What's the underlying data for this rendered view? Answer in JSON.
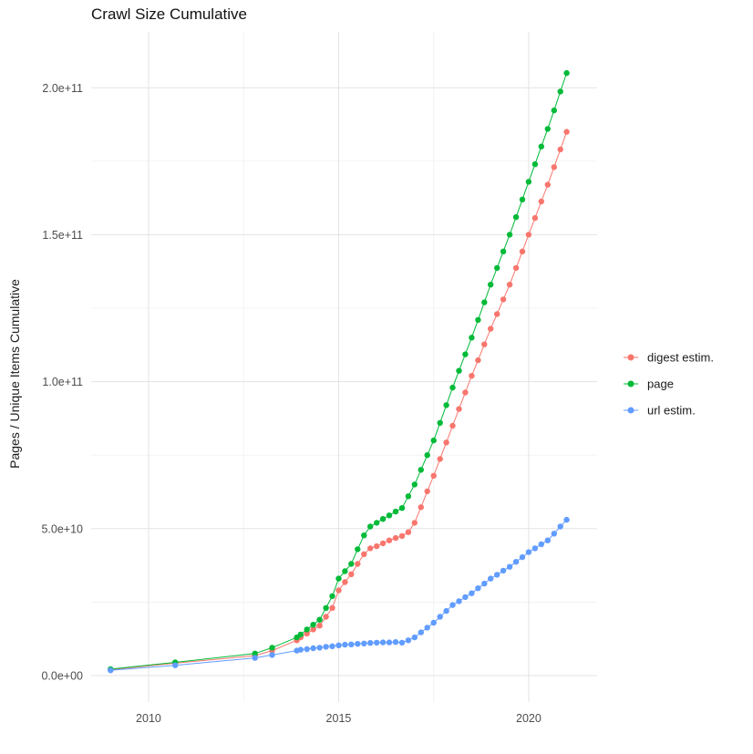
{
  "chart_data": {
    "type": "line",
    "title": "Crawl Size Cumulative",
    "xlabel": "",
    "ylabel": "Pages / Unique Items Cumulative",
    "legend_position": "right",
    "grid": true,
    "xlim": [
      2008.49,
      2021.8
    ],
    "ylim": [
      -9000000000,
      219000000000
    ],
    "x_ticks": [
      2010,
      2015,
      2020
    ],
    "x_tick_labels": [
      "2010",
      "2015",
      "2020"
    ],
    "x_minor_ticks": [
      2012.5,
      2017.5
    ],
    "y_ticks": [
      0,
      50000000000,
      100000000000,
      150000000000,
      200000000000
    ],
    "y_tick_labels": [
      "0.0e+00",
      "5.0e+10",
      "1.0e+11",
      "1.5e+11",
      "2.0e+11"
    ],
    "y_minor_ticks": [
      25000000000,
      75000000000,
      125000000000,
      175000000000
    ],
    "y_value_scale": 1000000000,
    "colors": {
      "grid_major": "#e3e3e3",
      "grid_minor": "#f1f1f1",
      "axis_text": "#4d4d4d",
      "background": "#ffffff"
    },
    "x": [
      2009,
      2010.7,
      2012.8,
      2013.25,
      2013.9,
      2014,
      2014.167,
      2014.333,
      2014.5,
      2014.667,
      2014.833,
      2015,
      2015.167,
      2015.333,
      2015.5,
      2015.667,
      2015.833,
      2016,
      2016.167,
      2016.333,
      2016.5,
      2016.667,
      2016.833,
      2017,
      2017.167,
      2017.333,
      2017.5,
      2017.667,
      2017.833,
      2018,
      2018.167,
      2018.333,
      2018.5,
      2018.667,
      2018.833,
      2019,
      2019.167,
      2019.333,
      2019.5,
      2019.667,
      2019.833,
      2020,
      2020.167,
      2020.333,
      2020.5,
      2020.667,
      2020.833,
      2021
    ],
    "series": [
      {
        "name": "digest estim.",
        "color": "#F8766D",
        "y": [
          2,
          4.2,
          6.8,
          8.5,
          12,
          13,
          14.3,
          15.7,
          17,
          20,
          23,
          29,
          31.8,
          34.5,
          38,
          41.3,
          43.3,
          44,
          45,
          46,
          46.8,
          47.5,
          48.8,
          52,
          57.3,
          62.7,
          68,
          73.7,
          79.3,
          85,
          90.7,
          96.3,
          102,
          107.3,
          112.7,
          118,
          123,
          128,
          133,
          138.7,
          144.3,
          150,
          155.7,
          161.3,
          167,
          173,
          179,
          185
        ]
      },
      {
        "name": "page",
        "color": "#00BA38",
        "y": [
          2.2,
          4.5,
          7.5,
          9.5,
          13,
          14,
          15.7,
          17.3,
          19,
          23,
          27,
          33,
          35.5,
          38,
          43,
          47.7,
          50.7,
          52,
          53.3,
          54.5,
          55.8,
          57,
          61,
          65,
          70,
          75,
          80,
          86,
          92,
          98,
          103.7,
          109.3,
          115,
          121,
          127,
          133,
          138.7,
          144.3,
          150,
          156,
          162,
          168,
          174,
          180,
          186,
          192.3,
          198.7,
          205
        ]
      },
      {
        "name": "url estim.",
        "color": "#619CFF",
        "y": [
          1.8,
          3.5,
          6,
          7,
          8.5,
          8.8,
          9,
          9.3,
          9.5,
          9.8,
          10,
          10.3,
          10.5,
          10.6,
          10.8,
          10.9,
          11.1,
          11.2,
          11.3,
          11.3,
          11.4,
          11.2,
          12,
          13,
          14.7,
          16.3,
          18,
          20,
          22,
          24,
          25.3,
          26.7,
          28,
          29.7,
          31.3,
          33,
          34.3,
          35.7,
          37,
          38.7,
          40.3,
          42,
          43.3,
          44.7,
          46,
          48.3,
          50.7,
          53
        ]
      }
    ]
  }
}
